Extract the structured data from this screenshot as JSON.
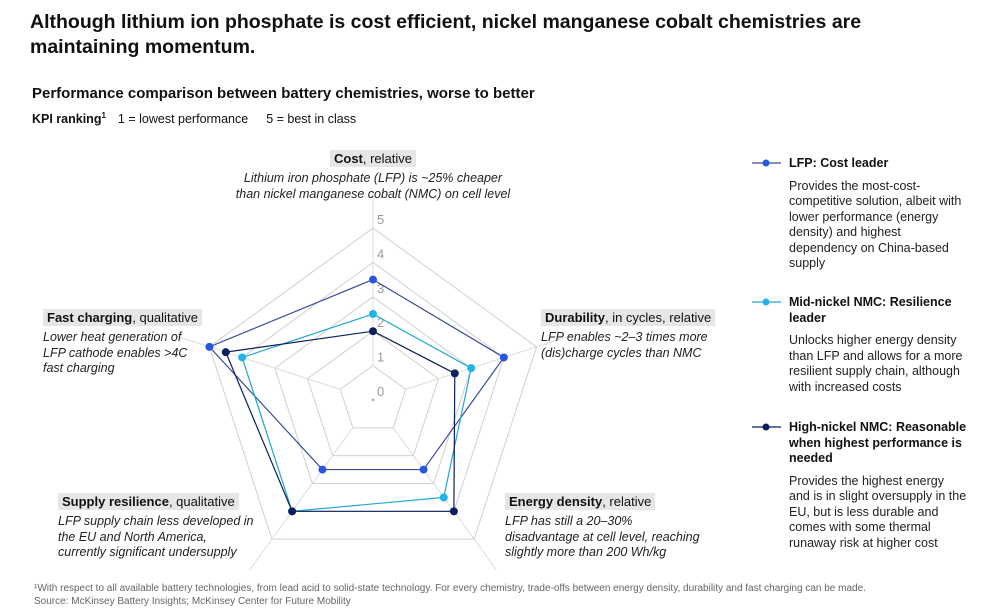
{
  "title": "Although lithium ion phosphate is cost efficient, nickel manganese cobalt chemistries are maintaining momentum.",
  "subtitle": "Performance comparison between battery chemistries, worse to better",
  "kpi": {
    "label": "KPI ranking",
    "sup": "1",
    "low": "1 = lowest performance",
    "high": "5 = best in class"
  },
  "axes": [
    {
      "name": "Cost",
      "qual": ", relative",
      "desc": "Lithium iron phosphate (LFP) is ~25% cheaper than nickel manganese cobalt (NMC) on cell level"
    },
    {
      "name": "Durability",
      "qual": ", in cycles, relative",
      "desc": "LFP enables ~2–3 times more (dis)charge cycles than NMC"
    },
    {
      "name": "Energy density",
      "qual": ", relative",
      "desc": "LFP has still a 20–30% disadvantage at cell level, reaching slightly more than 200 Wh/kg"
    },
    {
      "name": "Supply resilience",
      "qual": ", qualitative",
      "desc": "LFP supply chain less developed in the EU and North America, currently significant undersupply"
    },
    {
      "name": "Fast charging",
      "qual": ", qualitative",
      "desc": "Lower heat generation of LFP cathode enables >4C fast charging"
    }
  ],
  "legend": [
    {
      "title": "LFP: Cost leader",
      "desc": "Provides the most-cost-competitive solution, albeit with lower performance (energy density) and highest dependency on China-based supply"
    },
    {
      "title": "Mid-nickel NMC: Resilience leader",
      "desc": "Unlocks higher energy density than LFP and allows for a more resilient supply chain, although with increased costs"
    },
    {
      "title": "High-nickel NMC: Reasonable when highest performance is needed",
      "desc": "Provides the highest energy and is in slight oversupply in the EU, but is less durable and comes with some thermal runaway risk at higher cost"
    }
  ],
  "footnote": "¹With respect to all available battery technologies, from lead acid to solid-state technology. For every chemistry, trade-offs between energy density, durability and fast charging can be made.",
  "source": "Source: McKinsey Battery Insights; McKinsey Center for Future Mobility",
  "chart_data": {
    "type": "radar",
    "title": "Performance comparison between battery chemistries, worse to better",
    "categories": [
      "Cost",
      "Durability",
      "Energy density",
      "Supply resilience",
      "Fast charging"
    ],
    "ticks": [
      0,
      1,
      2,
      3,
      4,
      5
    ],
    "range": [
      0,
      5
    ],
    "series": [
      {
        "name": "LFP",
        "color": "#2a55e0",
        "line": "#3a4a9a",
        "values": [
          3.5,
          4,
          2.5,
          2.5,
          5
        ]
      },
      {
        "name": "Mid-nickel NMC",
        "color": "#22b4e6",
        "line": "#22a8d4",
        "values": [
          2.5,
          3,
          3.5,
          4,
          4
        ]
      },
      {
        "name": "High-nickel NMC",
        "color": "#0c1f5e",
        "line": "#0c1f5e",
        "values": [
          2,
          2.5,
          4,
          4,
          4.5
        ]
      }
    ]
  }
}
